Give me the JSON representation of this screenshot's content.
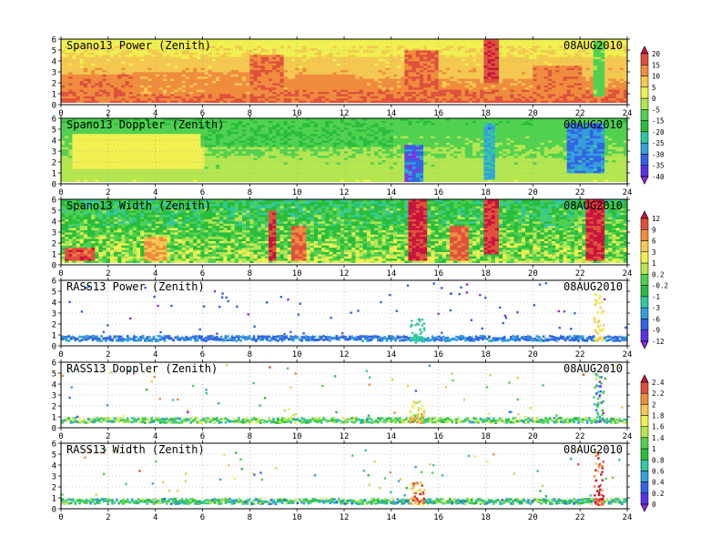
{
  "figure": {
    "background": "#ffffff"
  },
  "chart_data": [
    {
      "type": "heatmap",
      "title": "Spano13 Power (Zenith)",
      "date": "08AUG2010",
      "xlim": [
        0,
        24
      ],
      "ylim": [
        0,
        6
      ],
      "xticks": [
        0,
        2,
        4,
        6,
        8,
        10,
        12,
        14,
        16,
        18,
        20,
        22,
        24
      ],
      "yticks": [
        0,
        1,
        2,
        3,
        4,
        5,
        6
      ],
      "colorbar_id": "cb_power",
      "coverage": "full",
      "base_value": 6,
      "y_gradient": [
        14,
        12,
        9,
        6,
        4,
        2,
        0
      ],
      "features": [
        {
          "t": [
            0,
            3
          ],
          "h": [
            1.2,
            2.8
          ],
          "v": 11
        },
        {
          "t": [
            3,
            8
          ],
          "h": [
            1.0,
            3.0
          ],
          "v": 9
        },
        {
          "t": [
            8,
            9.5
          ],
          "h": [
            0.5,
            4.5
          ],
          "v": 12
        },
        {
          "t": [
            10,
            12.5
          ],
          "h": [
            1.5,
            2.8
          ],
          "v": 10
        },
        {
          "t": [
            14.5,
            16
          ],
          "h": [
            0.8,
            5.0
          ],
          "v": 13
        },
        {
          "t": [
            18,
            18.6
          ],
          "h": [
            2.0,
            6.0
          ],
          "v": 16
        },
        {
          "t": [
            20,
            22
          ],
          "h": [
            1.0,
            3.5
          ],
          "v": 11
        },
        {
          "t": [
            22.5,
            23
          ],
          "h": [
            0.8,
            6.0
          ],
          "v": -12
        }
      ]
    },
    {
      "type": "heatmap",
      "title": "Spano13 Doppler (Zenith)",
      "date": "08AUG2010",
      "xlim": [
        0,
        24
      ],
      "ylim": [
        0,
        6
      ],
      "xticks": [
        0,
        2,
        4,
        6,
        8,
        10,
        12,
        14,
        16,
        18,
        20,
        22,
        24
      ],
      "yticks": [
        0,
        1,
        2,
        3,
        4,
        5,
        6
      ],
      "colorbar_id": "cb_power",
      "coverage": "full",
      "base_value": -8,
      "y_gradient": [
        -4,
        -6,
        -8,
        -10,
        -12,
        -14,
        -16
      ],
      "features": [
        {
          "t": [
            0.5,
            6
          ],
          "h": [
            1.5,
            4.5
          ],
          "v": 0
        },
        {
          "t": [
            6,
            14
          ],
          "h": [
            3.5,
            5.5
          ],
          "v": -17
        },
        {
          "t": [
            14.5,
            15.3
          ],
          "h": [
            0.3,
            3.5
          ],
          "v": -34
        },
        {
          "t": [
            18,
            18.4
          ],
          "h": [
            0.5,
            5.5
          ],
          "v": -28
        },
        {
          "t": [
            21.5,
            23
          ],
          "h": [
            1.0,
            5.5
          ],
          "v": -32
        }
      ]
    },
    {
      "type": "heatmap",
      "title": "Spano13 Width (Zenith)",
      "date": "08AUG2010",
      "xlim": [
        0,
        24
      ],
      "ylim": [
        0,
        6
      ],
      "xticks": [
        0,
        2,
        4,
        6,
        8,
        10,
        12,
        14,
        16,
        18,
        20,
        22,
        24
      ],
      "yticks": [
        0,
        1,
        2,
        3,
        4,
        5,
        6
      ],
      "colorbar_id": "cb_width",
      "coverage": "full",
      "base_value": -0.5,
      "y_gradient": [
        0.4,
        0.1,
        -0.2,
        -0.5,
        -0.9,
        -1.2,
        -1.5
      ],
      "features": [
        {
          "t": [
            0.2,
            1.5
          ],
          "h": [
            0.5,
            1.5
          ],
          "v": 9
        },
        {
          "t": [
            3.5,
            4.5
          ],
          "h": [
            0.5,
            2.5
          ],
          "v": 5
        },
        {
          "t": [
            8.8,
            9.2
          ],
          "h": [
            0.5,
            5.0
          ],
          "v": 10
        },
        {
          "t": [
            9.7,
            10.4
          ],
          "h": [
            0.5,
            3.5
          ],
          "v": 8
        },
        {
          "t": [
            14.8,
            15.6
          ],
          "h": [
            0.5,
            6.0
          ],
          "v": 11
        },
        {
          "t": [
            16.5,
            17.2
          ],
          "h": [
            0.5,
            3.5
          ],
          "v": 8
        },
        {
          "t": [
            18,
            18.6
          ],
          "h": [
            1.0,
            6.0
          ],
          "v": 10
        },
        {
          "t": [
            22.2,
            23
          ],
          "h": [
            0.5,
            6.0
          ],
          "v": 11
        }
      ]
    },
    {
      "type": "heatmap",
      "title": "RASS13 Power (Zenith)",
      "date": "08AUG2010",
      "xlim": [
        0,
        24
      ],
      "ylim": [
        0,
        6
      ],
      "xticks": [
        0,
        2,
        4,
        6,
        8,
        10,
        12,
        14,
        16,
        18,
        20,
        22,
        24
      ],
      "yticks": [
        0,
        1,
        2,
        3,
        4,
        5,
        6
      ],
      "colorbar_id": "cb_width",
      "coverage": "rass",
      "base_value": -8,
      "y_gradient": [
        -6,
        -8,
        -9,
        -10,
        -10,
        -10,
        -10
      ],
      "features": [
        {
          "t": [
            14.8,
            15.4
          ],
          "h": [
            0.3,
            2.5
          ],
          "v": -4
        },
        {
          "t": [
            22.6,
            23
          ],
          "h": [
            0.3,
            5.0
          ],
          "v": 2
        }
      ]
    },
    {
      "type": "heatmap",
      "title": "RASS13 Doppler (Zenith)",
      "date": "08AUG2010",
      "xlim": [
        0,
        24
      ],
      "ylim": [
        0,
        6
      ],
      "xticks": [
        0,
        2,
        4,
        6,
        8,
        10,
        12,
        14,
        16,
        18,
        20,
        22,
        24
      ],
      "yticks": [
        0,
        1,
        2,
        3,
        4,
        5,
        6
      ],
      "colorbar_id": "cb_doppler",
      "coverage": "rass",
      "base_value": 1.1,
      "y_gradient": [
        1.1,
        1.0,
        1.1,
        1.2,
        1.2,
        1.2,
        1.2
      ],
      "features": [
        {
          "t": [
            14.8,
            15.4
          ],
          "h": [
            0.3,
            2.5
          ],
          "v": 1.6
        },
        {
          "t": [
            22.6,
            23
          ],
          "h": [
            0.3,
            5.0
          ],
          "v": 0.5
        }
      ]
    },
    {
      "type": "heatmap",
      "title": "RASS13 Width (Zenith)",
      "date": "08AUG2010",
      "xlim": [
        0,
        24
      ],
      "ylim": [
        0,
        6
      ],
      "xticks": [
        0,
        2,
        4,
        6,
        8,
        10,
        12,
        14,
        16,
        18,
        20,
        22,
        24
      ],
      "yticks": [
        0,
        1,
        2,
        3,
        4,
        5,
        6
      ],
      "colorbar_id": "cb_doppler",
      "coverage": "rass",
      "base_value": 0.8,
      "y_gradient": [
        0.7,
        0.8,
        1.0,
        1.2,
        1.2,
        1.2,
        1.2
      ],
      "features": [
        {
          "t": [
            14.8,
            15.4
          ],
          "h": [
            0.3,
            2.5
          ],
          "v": 2.0
        },
        {
          "t": [
            22.6,
            23
          ],
          "h": [
            0.3,
            5.0
          ],
          "v": 2.2
        }
      ]
    }
  ],
  "colorbars": [
    {
      "id": "cb_power",
      "labels": [
        "20",
        "15",
        "10",
        "5",
        "0",
        "-5",
        "-15",
        "-20",
        "-25",
        "-30",
        "-35",
        "-40"
      ],
      "thresholds": [
        17.5,
        12.5,
        7.5,
        2.5,
        -2.5,
        -10,
        -17.5,
        -22.5,
        -27.5,
        -32.5,
        -37.5
      ],
      "colors": [
        "#c8143c",
        "#e0503c",
        "#f08c3c",
        "#f5c850",
        "#f0f050",
        "#b4e650",
        "#50d250",
        "#28be3c",
        "#32c8a0",
        "#32a0dc",
        "#3264e6",
        "#5a32e6",
        "#9628dc"
      ]
    },
    {
      "id": "cb_width",
      "labels": [
        "12",
        "9",
        "6",
        "3",
        "1",
        "0.2",
        "-0.2",
        "-1",
        "-3",
        "-6",
        "-9",
        "-12"
      ],
      "thresholds": [
        10.5,
        7.5,
        4.5,
        2,
        0.6,
        0,
        -0.6,
        -2,
        -4.5,
        -7.5,
        -10.5
      ],
      "colors": [
        "#c8143c",
        "#e0503c",
        "#f08c3c",
        "#f5c850",
        "#f0f050",
        "#b4e650",
        "#50d250",
        "#28be3c",
        "#32c8a0",
        "#32a0dc",
        "#3264e6",
        "#5a32e6",
        "#9628dc"
      ]
    },
    {
      "id": "cb_doppler",
      "labels": [
        "2.4",
        "2.2",
        "2",
        "1.8",
        "1.6",
        "1.4",
        "1",
        "0.8",
        "0.6",
        "0.4",
        "0.2",
        "0"
      ],
      "thresholds": [
        2.3,
        2.1,
        1.9,
        1.7,
        1.5,
        1.2,
        0.9,
        0.7,
        0.5,
        0.3,
        0.1
      ],
      "colors": [
        "#c8143c",
        "#e0503c",
        "#f08c3c",
        "#f5c850",
        "#f0f050",
        "#b4e650",
        "#50d250",
        "#28be3c",
        "#32c8a0",
        "#32a0dc",
        "#3264e6",
        "#5a32e6",
        "#9628dc"
      ]
    }
  ]
}
